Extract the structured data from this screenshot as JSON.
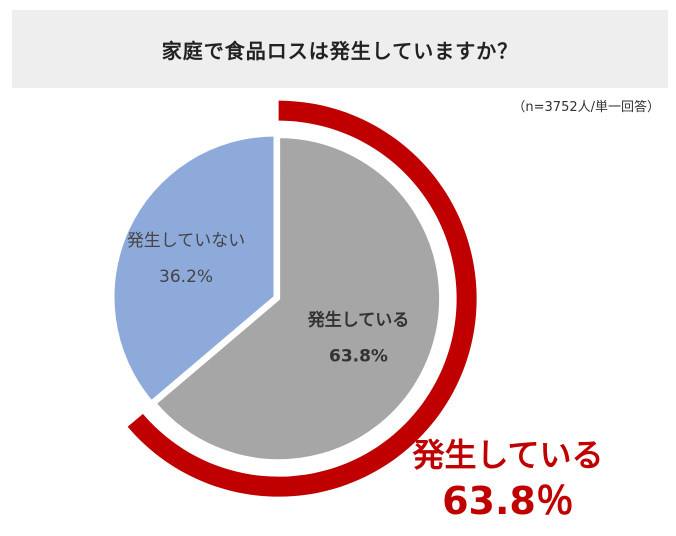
{
  "title": "家庭で食品ロスは発生していますか？",
  "note": "（n=3752人/単一回答）",
  "colors": {
    "occurs": "#a6a6a6",
    "not_occurs": "#8eaadb",
    "ring": "#c00000",
    "callout": "#c00000"
  },
  "callout": {
    "label": "発生している",
    "value": "63.8％"
  },
  "chart_data": {
    "type": "pie",
    "title": "家庭で食品ロスは発生していますか？",
    "unit": "%",
    "start": "12 o'clock, clockwise",
    "highlight": "発生している",
    "slices": [
      {
        "label": "発生している",
        "value": 63.8,
        "value_label": "63.8%",
        "color": "#a6a6a6"
      },
      {
        "label": "発生していない",
        "value": 36.2,
        "value_label": "36.2%",
        "color": "#8eaadb"
      }
    ]
  }
}
